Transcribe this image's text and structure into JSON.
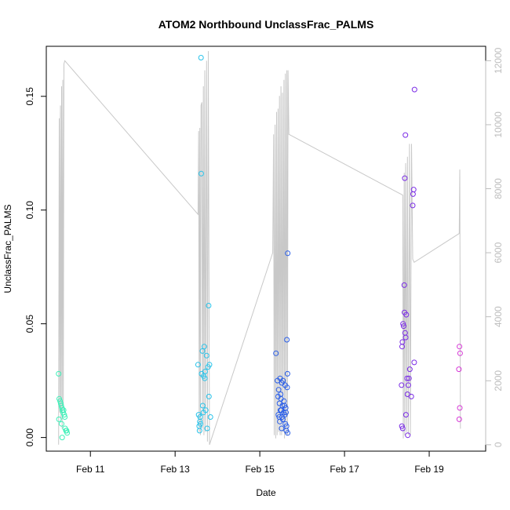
{
  "chart_data": {
    "type": "scatter",
    "title": "ATOM2 Northbound UnclassFrac_PALMS",
    "xlabel": "Date",
    "ylabel": "UnclassFrac_PALMS",
    "xlim": [
      "2017-02-09 23:00",
      "2017-02-20 08:00"
    ],
    "ylim": [
      -0.006,
      0.172
    ],
    "y_ticks": [
      0.0,
      0.05,
      0.1,
      0.15
    ],
    "y_tick_labels": [
      "0.00",
      "0.05",
      "0.10",
      "0.15"
    ],
    "x_ticks": [
      "2017-02-11",
      "2017-02-13",
      "2017-02-15",
      "2017-02-17",
      "2017-02-19"
    ],
    "x_tick_labels": [
      "Feb 11",
      "Feb 13",
      "Feb 15",
      "Feb 17",
      "Feb 19"
    ],
    "y2_ticks": [
      0,
      2000,
      4000,
      6000,
      8000,
      10000,
      12000
    ],
    "y2_tick_labels": [
      "0",
      "2000",
      "4000",
      "6000",
      "8000",
      "10000",
      "12000"
    ],
    "y2lim": [
      -200,
      12450
    ],
    "altitude_line_color": "#c8c8c8",
    "series": [
      {
        "color": "#3ef0b8",
        "points": [
          [
            "2017-02-10 06:00",
            0.028
          ],
          [
            "2017-02-10 06:20",
            0.017
          ],
          [
            "2017-02-10 06:50",
            0.016
          ],
          [
            "2017-02-10 07:10",
            0.015
          ],
          [
            "2017-02-10 07:30",
            0.014
          ],
          [
            "2017-02-10 07:50",
            0.013
          ],
          [
            "2017-02-10 08:10",
            0.012
          ],
          [
            "2017-02-10 08:30",
            0.011
          ],
          [
            "2017-02-10 08:50",
            0.012
          ],
          [
            "2017-02-10 09:10",
            0.01
          ],
          [
            "2017-02-10 09:30",
            0.009
          ],
          [
            "2017-02-10 06:10",
            0.008
          ],
          [
            "2017-02-10 07:40",
            0.006
          ],
          [
            "2017-02-10 09:40",
            0.004
          ],
          [
            "2017-02-10 10:10",
            0.003
          ],
          [
            "2017-02-10 10:30",
            0.003
          ],
          [
            "2017-02-10 10:50",
            0.002
          ],
          [
            "2017-02-10 08:00",
            0.0
          ]
        ]
      },
      {
        "color": "#29c3ea",
        "points": [
          [
            "2017-02-13 13:00",
            0.032
          ],
          [
            "2017-02-13 14:40",
            0.167
          ],
          [
            "2017-02-13 14:50",
            0.116
          ],
          [
            "2017-02-13 16:30",
            0.04
          ],
          [
            "2017-02-13 15:30",
            0.038
          ],
          [
            "2017-02-13 17:50",
            0.036
          ],
          [
            "2017-02-13 17:00",
            0.029
          ],
          [
            "2017-02-13 15:00",
            0.028
          ],
          [
            "2017-02-13 16:10",
            0.027
          ],
          [
            "2017-02-13 16:50",
            0.026
          ],
          [
            "2017-02-13 18:40",
            0.031
          ],
          [
            "2017-02-13 19:30",
            0.032
          ],
          [
            "2017-02-13 19:00",
            0.058
          ],
          [
            "2017-02-13 19:10",
            0.018
          ],
          [
            "2017-02-13 15:40",
            0.014
          ],
          [
            "2017-02-13 17:20",
            0.012
          ],
          [
            "2017-02-13 16:00",
            0.011
          ],
          [
            "2017-02-13 13:20",
            0.01
          ],
          [
            "2017-02-13 14:10",
            0.009
          ],
          [
            "2017-02-13 20:00",
            0.009
          ],
          [
            "2017-02-13 14:00",
            0.007
          ],
          [
            "2017-02-13 14:20",
            0.006
          ],
          [
            "2017-02-13 13:40",
            0.005
          ],
          [
            "2017-02-13 18:10",
            0.004
          ],
          [
            "2017-02-13 13:50",
            0.003
          ]
        ]
      },
      {
        "color": "#2a5ee8",
        "points": [
          [
            "2017-02-15 09:10",
            0.037
          ],
          [
            "2017-02-15 15:50",
            0.081
          ],
          [
            "2017-02-15 15:20",
            0.043
          ],
          [
            "2017-02-15 15:40",
            0.028
          ],
          [
            "2017-02-15 10:00",
            0.025
          ],
          [
            "2017-02-15 11:30",
            0.026
          ],
          [
            "2017-02-15 12:30",
            0.024
          ],
          [
            "2017-02-15 13:10",
            0.025
          ],
          [
            "2017-02-15 14:20",
            0.023
          ],
          [
            "2017-02-15 15:30",
            0.022
          ],
          [
            "2017-02-15 10:40",
            0.021
          ],
          [
            "2017-02-15 11:50",
            0.019
          ],
          [
            "2017-02-15 10:20",
            0.018
          ],
          [
            "2017-02-15 12:00",
            0.017
          ],
          [
            "2017-02-15 13:40",
            0.016
          ],
          [
            "2017-02-15 11:10",
            0.015
          ],
          [
            "2017-02-15 12:50",
            0.014
          ],
          [
            "2017-02-15 14:00",
            0.014
          ],
          [
            "2017-02-15 14:40",
            0.013
          ],
          [
            "2017-02-15 11:40",
            0.012
          ],
          [
            "2017-02-15 12:10",
            0.012
          ],
          [
            "2017-02-15 13:30",
            0.011
          ],
          [
            "2017-02-15 10:30",
            0.01
          ],
          [
            "2017-02-15 14:50",
            0.011
          ],
          [
            "2017-02-15 11:00",
            0.009
          ],
          [
            "2017-02-15 12:40",
            0.009
          ],
          [
            "2017-02-15 14:10",
            0.01
          ],
          [
            "2017-02-15 13:00",
            0.008
          ],
          [
            "2017-02-15 11:20",
            0.007
          ],
          [
            "2017-02-15 14:30",
            0.006
          ],
          [
            "2017-02-15 15:10",
            0.005
          ],
          [
            "2017-02-15 12:20",
            0.004
          ],
          [
            "2017-02-15 15:00",
            0.003
          ],
          [
            "2017-02-15 15:45",
            0.002
          ]
        ]
      },
      {
        "color": "#7b2ce6",
        "points": [
          [
            "2017-02-18 15:40",
            0.153
          ],
          [
            "2017-02-18 10:30",
            0.133
          ],
          [
            "2017-02-18 10:10",
            0.114
          ],
          [
            "2017-02-18 15:10",
            0.109
          ],
          [
            "2017-02-18 14:50",
            0.107
          ],
          [
            "2017-02-18 14:40",
            0.102
          ],
          [
            "2017-02-18 09:50",
            0.067
          ],
          [
            "2017-02-18 10:00",
            0.055
          ],
          [
            "2017-02-18 11:00",
            0.054
          ],
          [
            "2017-02-18 09:10",
            0.05
          ],
          [
            "2017-02-18 09:30",
            0.049
          ],
          [
            "2017-02-18 10:20",
            0.046
          ],
          [
            "2017-02-18 10:40",
            0.044
          ],
          [
            "2017-02-18 08:50",
            0.042
          ],
          [
            "2017-02-18 08:40",
            0.04
          ],
          [
            "2017-02-18 15:30",
            0.033
          ],
          [
            "2017-02-18 13:00",
            0.03
          ],
          [
            "2017-02-18 11:30",
            0.026
          ],
          [
            "2017-02-18 12:30",
            0.026
          ],
          [
            "2017-02-18 12:10",
            0.023
          ],
          [
            "2017-02-18 08:20",
            0.023
          ],
          [
            "2017-02-18 11:40",
            0.019
          ],
          [
            "2017-02-18 13:50",
            0.018
          ],
          [
            "2017-02-18 10:50",
            0.01
          ],
          [
            "2017-02-18 08:30",
            0.005
          ],
          [
            "2017-02-18 09:00",
            0.004
          ],
          [
            "2017-02-18 11:50",
            0.001
          ]
        ]
      },
      {
        "color": "#d638d6",
        "points": [
          [
            "2017-02-19 17:10",
            0.04
          ],
          [
            "2017-02-19 17:30",
            0.037
          ],
          [
            "2017-02-19 16:50",
            0.03
          ],
          [
            "2017-02-19 17:20",
            0.013
          ],
          [
            "2017-02-19 17:00",
            0.008
          ]
        ]
      }
    ],
    "altitude_line": [
      [
        "2017-02-10 06:00",
        0
      ],
      [
        "2017-02-10 06:20",
        10200
      ],
      [
        "2017-02-10 06:40",
        1000
      ],
      [
        "2017-02-10 07:00",
        10600
      ],
      [
        "2017-02-10 07:20",
        800
      ],
      [
        "2017-02-10 07:40",
        11200
      ],
      [
        "2017-02-10 08:00",
        500
      ],
      [
        "2017-02-10 08:20",
        11400
      ],
      [
        "2017-02-10 08:40",
        1200
      ],
      [
        "2017-02-10 09:00",
        11900
      ],
      [
        "2017-02-10 09:30",
        12000
      ],
      [
        "2017-02-13 13:00",
        7200
      ],
      [
        "2017-02-13 13:20",
        9800
      ],
      [
        "2017-02-13 13:40",
        400
      ],
      [
        "2017-02-13 14:00",
        9900
      ],
      [
        "2017-02-13 14:20",
        300
      ],
      [
        "2017-02-13 14:40",
        10600
      ],
      [
        "2017-02-13 15:10",
        10700
      ],
      [
        "2017-02-13 15:30",
        500
      ],
      [
        "2017-02-13 16:00",
        11200
      ],
      [
        "2017-02-13 16:20",
        300
      ],
      [
        "2017-02-13 16:50",
        11700
      ],
      [
        "2017-02-13 17:10",
        400
      ],
      [
        "2017-02-13 17:50",
        12000
      ],
      [
        "2017-02-13 18:20",
        100
      ],
      [
        "2017-02-13 18:50",
        12300
      ],
      [
        "2017-02-13 19:30",
        0
      ],
      [
        "2017-02-15 07:20",
        6000
      ],
      [
        "2017-02-15 07:50",
        9700
      ],
      [
        "2017-02-15 08:10",
        300
      ],
      [
        "2017-02-15 08:40",
        10000
      ],
      [
        "2017-02-15 09:00",
        200
      ],
      [
        "2017-02-15 09:30",
        10400
      ],
      [
        "2017-02-15 09:50",
        300
      ],
      [
        "2017-02-15 10:20",
        10500
      ],
      [
        "2017-02-15 10:40",
        400
      ],
      [
        "2017-02-15 11:10",
        10900
      ],
      [
        "2017-02-15 11:30",
        300
      ],
      [
        "2017-02-15 12:00",
        11200
      ],
      [
        "2017-02-15 12:20",
        300
      ],
      [
        "2017-02-15 12:50",
        11000
      ],
      [
        "2017-02-15 13:10",
        400
      ],
      [
        "2017-02-15 13:40",
        11400
      ],
      [
        "2017-02-15 14:00",
        200
      ],
      [
        "2017-02-15 14:30",
        11600
      ],
      [
        "2017-02-15 14:50",
        300
      ],
      [
        "2017-02-15 15:20",
        11700
      ],
      [
        "2017-02-15 15:40",
        300
      ],
      [
        "2017-02-15 16:00",
        11700
      ],
      [
        "2017-02-15 16:30",
        9700
      ],
      [
        "2017-02-18 09:00",
        7800
      ],
      [
        "2017-02-18 09:20",
        200
      ],
      [
        "2017-02-18 09:50",
        8500
      ],
      [
        "2017-02-18 10:10",
        300
      ],
      [
        "2017-02-18 10:40",
        8800
      ],
      [
        "2017-02-18 11:10",
        400
      ],
      [
        "2017-02-18 11:40",
        9000
      ],
      [
        "2017-02-18 12:10",
        300
      ],
      [
        "2017-02-18 12:50",
        9400
      ],
      [
        "2017-02-18 13:20",
        300
      ],
      [
        "2017-02-18 14:00",
        9400
      ],
      [
        "2017-02-18 14:40",
        5800
      ],
      [
        "2017-02-18 15:30",
        5700
      ],
      [
        "2017-02-19 17:00",
        6600
      ],
      [
        "2017-02-19 17:20",
        8600
      ],
      [
        "2017-02-19 17:40",
        500
      ]
    ]
  }
}
